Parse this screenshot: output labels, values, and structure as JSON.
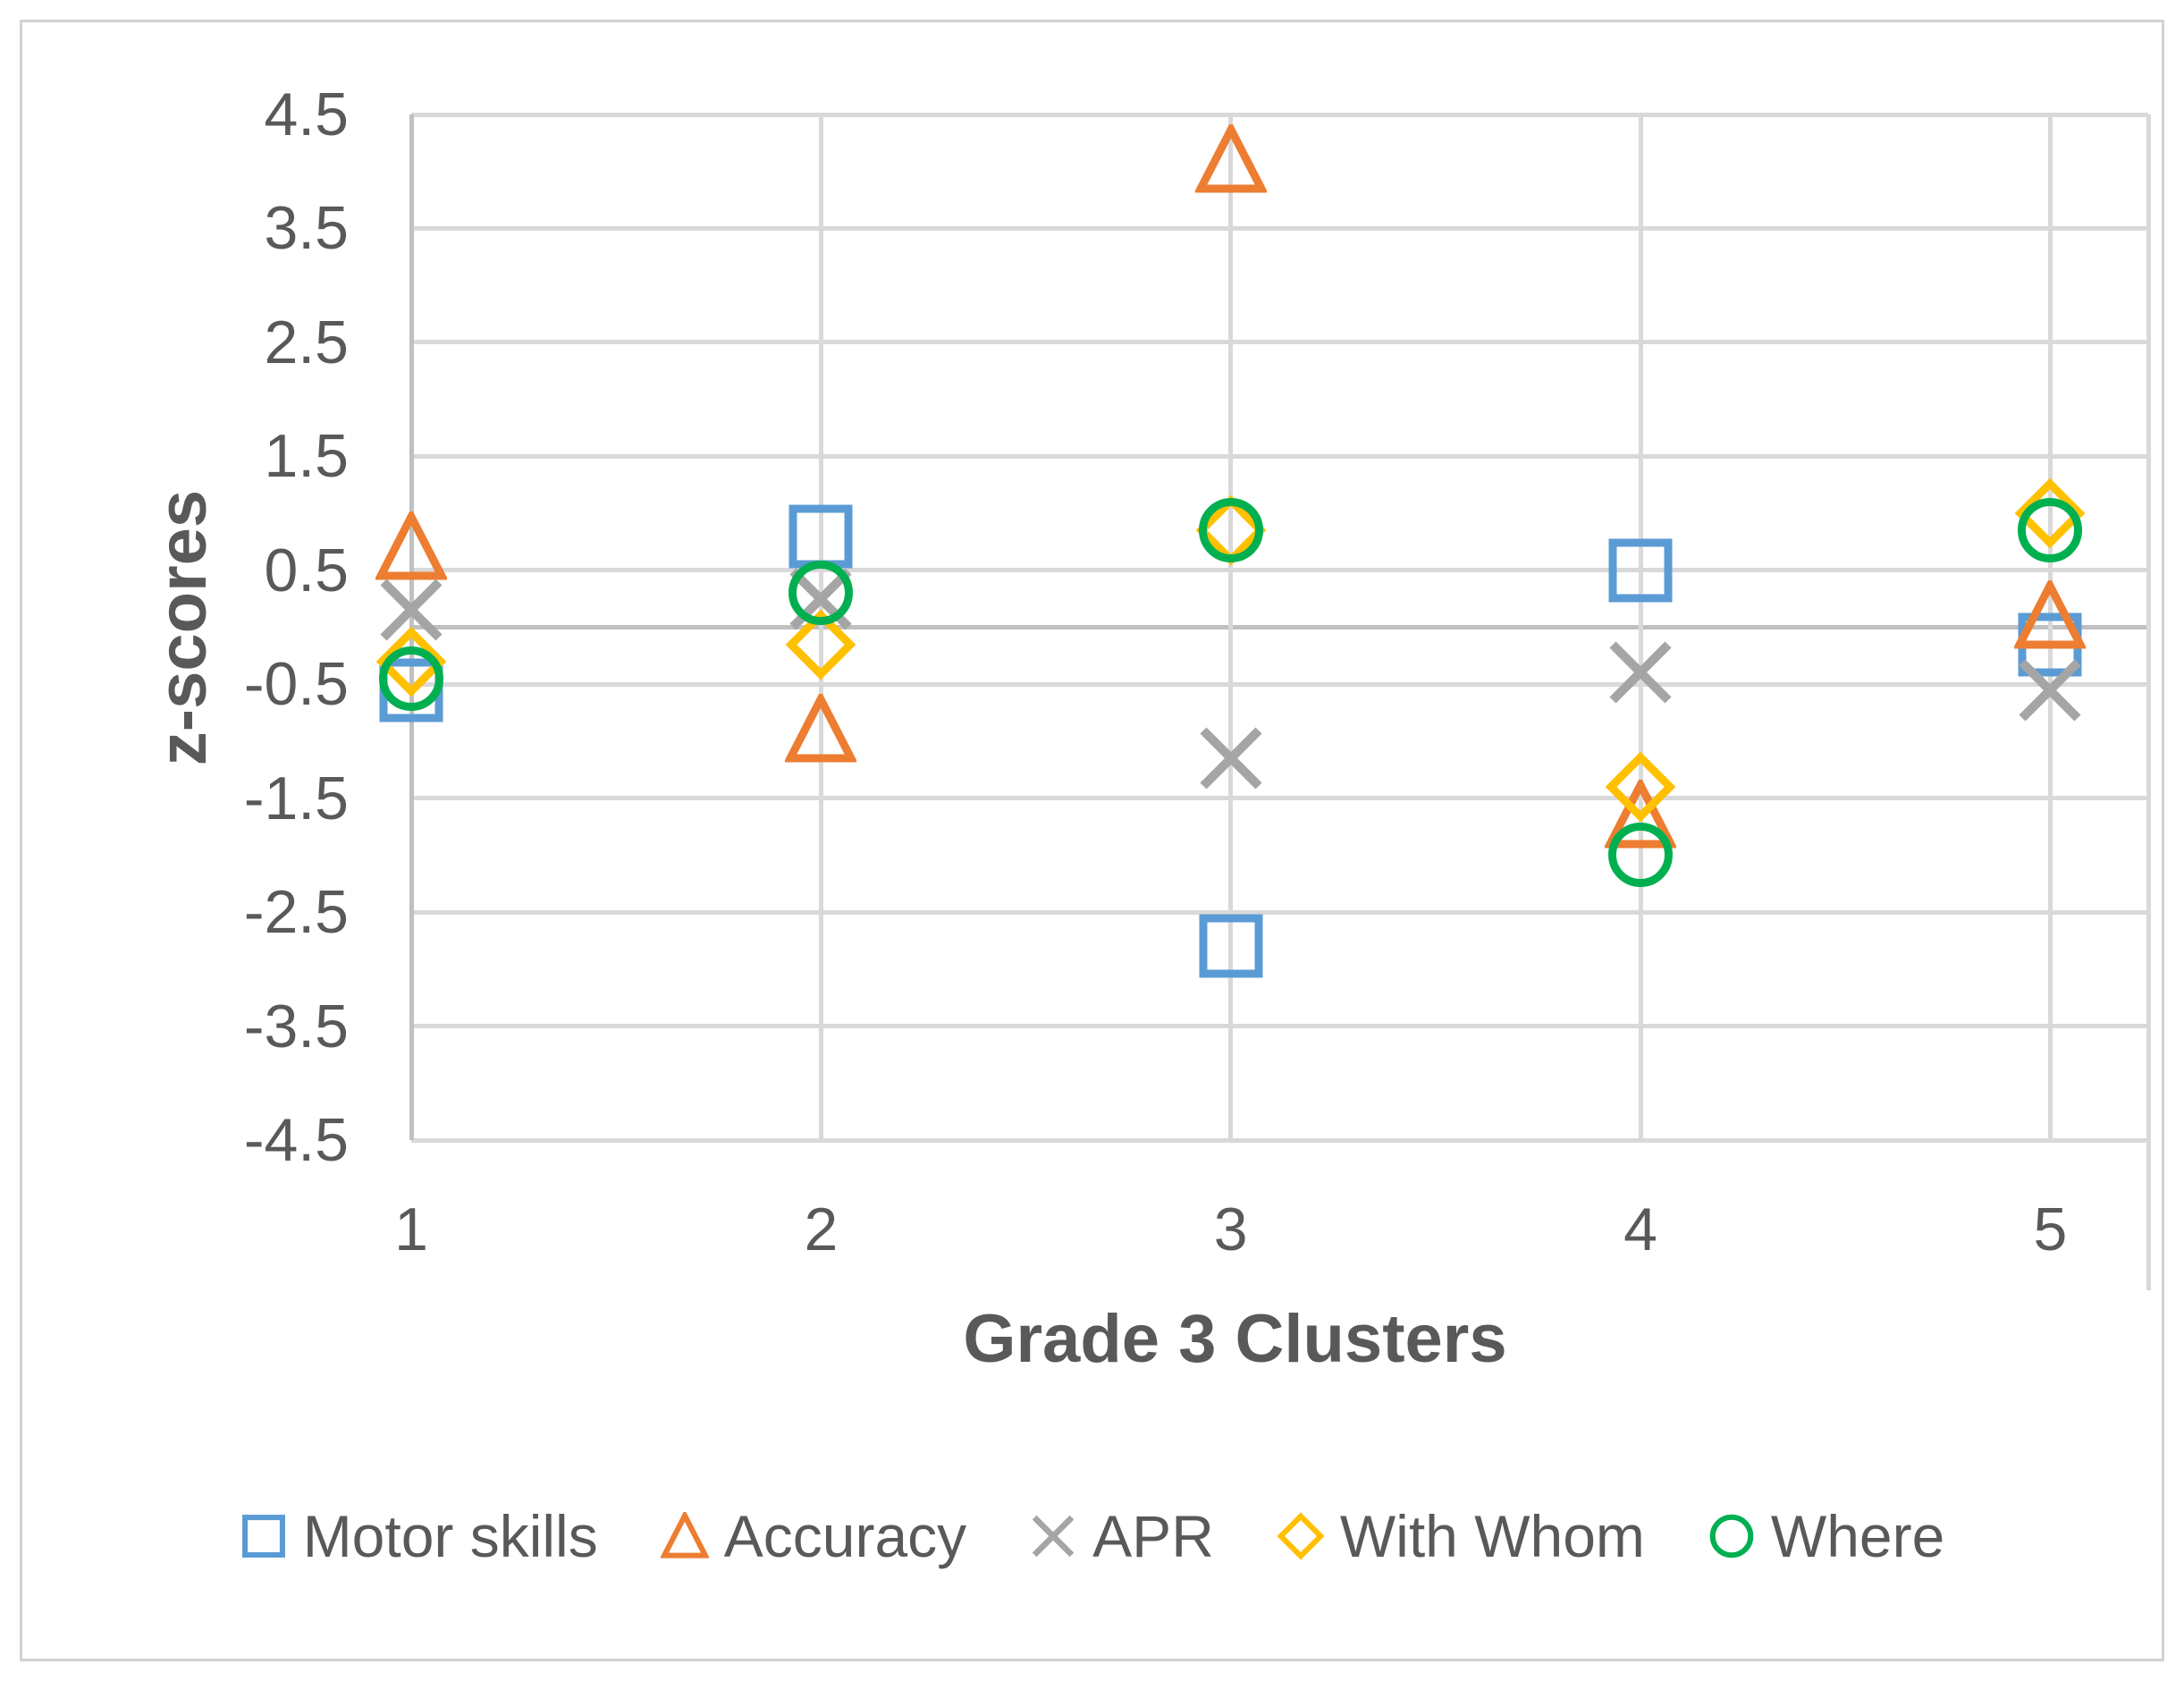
{
  "chart_data": {
    "type": "scatter",
    "title": "",
    "xlabel": "Grade 3 Clusters",
    "ylabel": "z-scores",
    "x_categories": [
      "1",
      "2",
      "3",
      "4",
      "5"
    ],
    "ylim": [
      -4.5,
      4.5
    ],
    "ytick_labels": [
      "4.5",
      "3.5",
      "2.5",
      "1.5",
      "0.5",
      "-0.5",
      "-1.5",
      "-2.5",
      "-3.5",
      "-4.5"
    ],
    "grid": true,
    "legend_position": "bottom",
    "series": [
      {
        "name": "Motor skills",
        "marker": "square",
        "color": "#5B9BD5",
        "values": [
          -0.55,
          0.8,
          -2.8,
          0.5,
          -0.15
        ]
      },
      {
        "name": "Accuracy",
        "marker": "triangle",
        "color": "#ED7D31",
        "values": [
          0.7,
          -0.9,
          4.1,
          -1.65,
          0.1
        ]
      },
      {
        "name": "APR",
        "marker": "x",
        "color": "#A5A5A5",
        "values": [
          0.15,
          0.25,
          -1.15,
          -0.4,
          -0.55
        ]
      },
      {
        "name": "With Whom",
        "marker": "diamond",
        "color": "#FFC000",
        "values": [
          -0.3,
          -0.15,
          0.85,
          -1.4,
          1.0
        ]
      },
      {
        "name": "Where",
        "marker": "circle",
        "color": "#00B050",
        "values": [
          -0.45,
          0.3,
          0.85,
          -2.0,
          0.85
        ]
      }
    ]
  },
  "colors": {
    "text": "#595959",
    "gridline": "#D9D9D9",
    "axis_line": "#C0C0C0",
    "background": "#FFFFFF",
    "chart_border": "#D2D2D2"
  }
}
